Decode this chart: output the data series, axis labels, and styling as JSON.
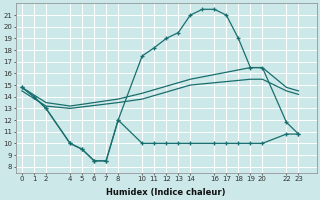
{
  "xlabel": "Humidex (Indice chaleur)",
  "bg_color": "#cce8e8",
  "grid_color": "#ffffff",
  "line_color": "#1a6e6e",
  "ylim": [
    7.5,
    22
  ],
  "xlim": [
    -0.5,
    24.5
  ],
  "yticks": [
    8,
    9,
    10,
    11,
    12,
    13,
    14,
    15,
    16,
    17,
    18,
    19,
    20,
    21
  ],
  "xticks": [
    0,
    1,
    2,
    4,
    5,
    6,
    7,
    8,
    10,
    11,
    12,
    13,
    14,
    16,
    17,
    18,
    19,
    20,
    22,
    23
  ],
  "line_peak_x": [
    0,
    1,
    2,
    4,
    5,
    6,
    7,
    8,
    10,
    11,
    12,
    13,
    14,
    15,
    16,
    17,
    18,
    19,
    20,
    22,
    23
  ],
  "line_peak_y": [
    14.8,
    14.0,
    13.0,
    10.0,
    9.5,
    8.5,
    8.5,
    12.0,
    17.5,
    18.2,
    19.0,
    19.5,
    21.0,
    21.5,
    21.5,
    21.0,
    19.0,
    16.5,
    16.5,
    11.8,
    10.8
  ],
  "line_low_x": [
    0,
    1,
    2,
    4,
    5,
    6,
    7,
    8,
    10,
    11,
    12,
    13,
    14,
    16,
    17,
    18,
    19,
    20,
    22,
    23
  ],
  "line_low_y": [
    14.8,
    14.0,
    13.0,
    10.0,
    9.5,
    8.5,
    8.5,
    12.0,
    10.0,
    10.0,
    10.0,
    10.0,
    10.0,
    10.0,
    10.0,
    10.0,
    10.0,
    10.0,
    10.8,
    10.8
  ],
  "line_upper_x": [
    0,
    2,
    4,
    8,
    10,
    14,
    19,
    20,
    22,
    23
  ],
  "line_upper_y": [
    14.8,
    13.5,
    13.2,
    13.8,
    14.3,
    15.5,
    16.5,
    16.5,
    14.8,
    14.5
  ],
  "line_lower_x": [
    0,
    2,
    4,
    8,
    10,
    14,
    19,
    20,
    22,
    23
  ],
  "line_lower_y": [
    14.5,
    13.2,
    13.0,
    13.5,
    13.8,
    15.0,
    15.5,
    15.5,
    14.5,
    14.2
  ]
}
